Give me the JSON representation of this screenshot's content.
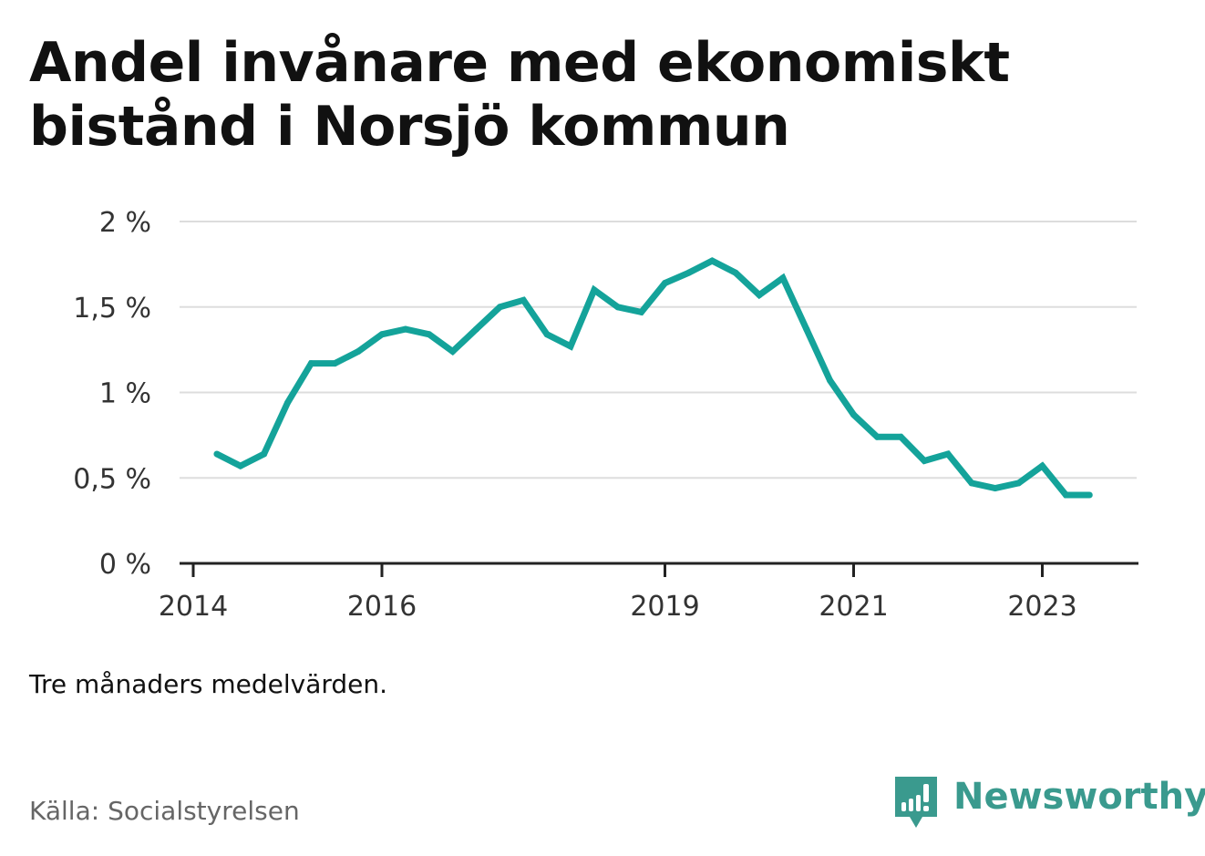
{
  "title": "Andel invånare med ekonomiskt bistånd i Norsjö kommun",
  "note": "Tre månaders medelvärden.",
  "source": "Källa: Socialstyrelsen",
  "brand": {
    "name": "Newsworthy",
    "icon": "newsworthy-logo-icon",
    "color": "#3a9a8e"
  },
  "colors": {
    "line": "#14a39a",
    "grid": "#dddddd",
    "axis": "#222222"
  },
  "chart_data": {
    "type": "line",
    "title": "Andel invånare med ekonomiskt bistånd i Norsjö kommun",
    "xlabel": "",
    "ylabel": "",
    "x_range": [
      "2014-01",
      "2024-01"
    ],
    "ylim": [
      0,
      2
    ],
    "grid": true,
    "legend": "none",
    "y_ticks": [
      {
        "value": 0,
        "label": "0 %"
      },
      {
        "value": 0.5,
        "label": "0,5 %"
      },
      {
        "value": 1,
        "label": "1 %"
      },
      {
        "value": 1.5,
        "label": "1,5 %"
      },
      {
        "value": 2,
        "label": "2 %"
      }
    ],
    "x_ticks": [
      {
        "value": "2014-01",
        "label": "2014"
      },
      {
        "value": "2016-01",
        "label": "2016"
      },
      {
        "value": "2019-01",
        "label": "2019"
      },
      {
        "value": "2021-01",
        "label": "2021"
      },
      {
        "value": "2023-01",
        "label": "2023"
      }
    ],
    "series": [
      {
        "x": [
          "2014-04",
          "2014-07",
          "2014-10",
          "2015-01",
          "2015-04",
          "2015-07",
          "2015-10",
          "2016-01",
          "2016-04",
          "2016-07",
          "2016-10",
          "2017-01",
          "2017-04",
          "2017-07",
          "2017-10",
          "2018-01",
          "2018-04",
          "2018-07",
          "2018-10",
          "2019-01",
          "2019-04",
          "2019-07",
          "2019-10",
          "2020-01",
          "2020-04",
          "2020-07",
          "2020-10",
          "2021-01",
          "2021-04",
          "2021-07",
          "2021-10",
          "2022-01",
          "2022-04",
          "2022-07",
          "2022-10",
          "2023-01",
          "2023-04",
          "2023-07"
        ],
        "values": [
          0.64,
          0.57,
          0.64,
          0.94,
          1.17,
          1.17,
          1.24,
          1.34,
          1.37,
          1.34,
          1.24,
          1.37,
          1.5,
          1.54,
          1.34,
          1.27,
          1.6,
          1.5,
          1.47,
          1.64,
          1.7,
          1.77,
          1.7,
          1.57,
          1.67,
          1.37,
          1.07,
          0.87,
          0.74,
          0.74,
          0.6,
          0.64,
          0.47,
          0.44,
          0.47,
          0.57,
          0.4,
          0.4
        ]
      }
    ]
  }
}
